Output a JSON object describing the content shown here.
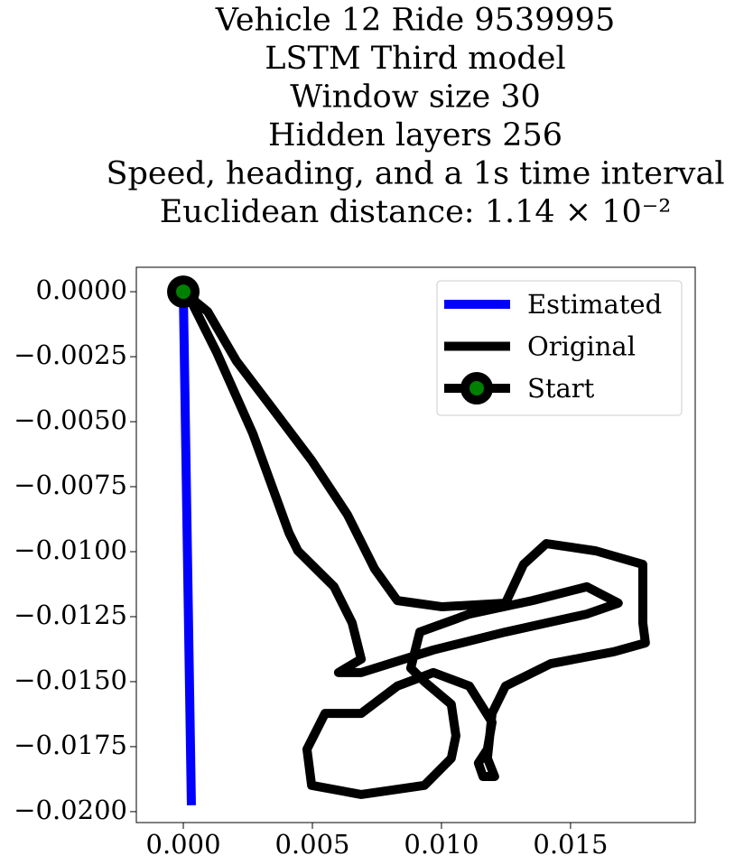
{
  "chart_data": {
    "type": "line",
    "title": [
      "Vehicle 12 Ride 9539995",
      "LSTM Third model",
      "Window size 30",
      "Hidden layers 256",
      "Speed, heading, and a 1s time interval",
      "Euclidean distance: 1.14 × 10⁻²"
    ],
    "series": [
      {
        "name": "Estimated",
        "color": "#0000ff",
        "x": [
          0,
          0.00031
        ],
        "values": [
          0,
          -0.01958
        ]
      },
      {
        "name": "Original",
        "color": "#000000",
        "x": [
          0,
          0.00094,
          0.00206,
          0.00339,
          0.00497,
          0.00636,
          0.00741,
          0.00829,
          0.01003,
          0.01248,
          0.01318,
          0.01406,
          0.01598,
          0.0178,
          0.0178,
          0.0179,
          0.01668,
          0.01423,
          0.01248,
          0.01196,
          0.01178,
          0.01206,
          0.01161,
          0.01143,
          0.01178,
          0.01196,
          0.01108,
          0.00969,
          0.00829,
          0.00689,
          0.00549,
          0.00479,
          0.00497,
          0.00689,
          0.00934,
          0.01038,
          0.01056,
          0.01038,
          0.00934,
          0.00881,
          0.00916,
          0.01108,
          0.01353,
          0.01563,
          0.01685,
          0.01563,
          0.01248,
          0.00969,
          0.00689,
          0.00601,
          0.00689,
          0.00654,
          0.00584,
          0.00444,
          0.00409,
          0.00269,
          0.00129,
          0.00024
        ],
        "values": [
          0,
          -0.00076,
          -0.00267,
          -0.00441,
          -0.00649,
          -0.00858,
          -0.01066,
          -0.01188,
          -0.01212,
          -0.01198,
          -0.01049,
          -0.00969,
          -0.00997,
          -0.01049,
          -0.01274,
          -0.01351,
          -0.01385,
          -0.01431,
          -0.01517,
          -0.01622,
          -0.01795,
          -0.01865,
          -0.01865,
          -0.01813,
          -0.0176,
          -0.01656,
          -0.01517,
          -0.01465,
          -0.01517,
          -0.01622,
          -0.01622,
          -0.0176,
          -0.01899,
          -0.01934,
          -0.01899,
          -0.01795,
          -0.01708,
          -0.01587,
          -0.015,
          -0.01448,
          -0.01309,
          -0.0124,
          -0.01188,
          -0.01135,
          -0.01198,
          -0.0124,
          -0.01309,
          -0.01378,
          -0.01465,
          -0.01465,
          -0.01413,
          -0.01274,
          -0.01135,
          -0.00997,
          -0.00927,
          -0.00545,
          -0.00233,
          -0.00024
        ]
      },
      {
        "name": "Start",
        "color": "#000000",
        "marker_color": "#008000",
        "x": [
          0
        ],
        "values": [
          0
        ]
      }
    ],
    "xlim": [
      -0.00182,
      0.01983
    ],
    "ylim": [
      -0.02042,
      0.00094
    ],
    "xticks": [
      {
        "value": 0,
        "label": "0.000"
      },
      {
        "value": 0.005,
        "label": "0.005"
      },
      {
        "value": 0.01,
        "label": "0.010"
      },
      {
        "value": 0.015,
        "label": "0.015"
      }
    ],
    "yticks": [
      {
        "value": 0,
        "label": "0.0000"
      },
      {
        "value": -0.0025,
        "label": "−0.0025"
      },
      {
        "value": -0.005,
        "label": "−0.0050"
      },
      {
        "value": -0.0075,
        "label": "−0.0075"
      },
      {
        "value": -0.01,
        "label": "−0.0100"
      },
      {
        "value": -0.0125,
        "label": "−0.0125"
      },
      {
        "value": -0.015,
        "label": "−0.0150"
      },
      {
        "value": -0.0175,
        "label": "−0.0175"
      },
      {
        "value": -0.02,
        "label": "−0.0200"
      }
    ],
    "grid": false,
    "legend": "upper right"
  }
}
